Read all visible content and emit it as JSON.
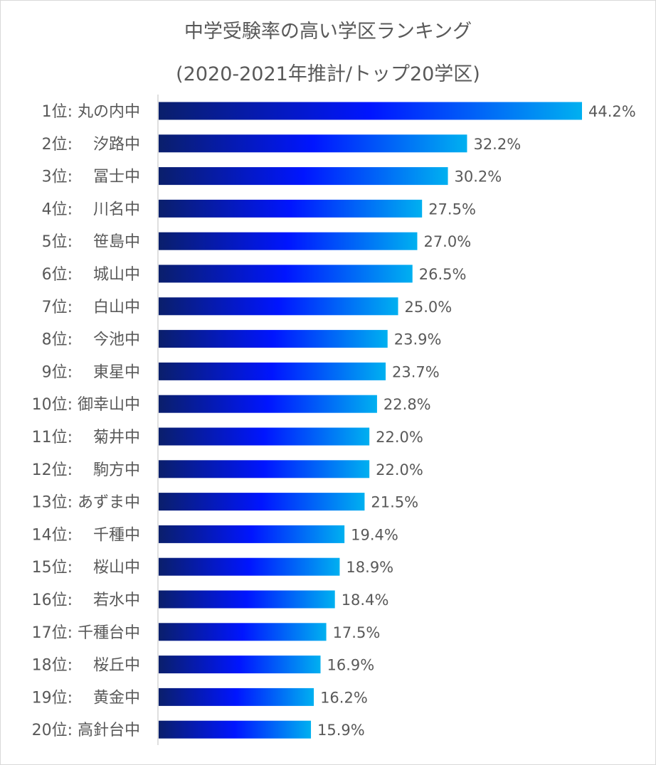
{
  "chart_data": {
    "type": "bar",
    "orientation": "horizontal",
    "title": "中学受験率の高い学区ランキング",
    "subtitle": "(2020-2021年推計/トップ20学区)",
    "categories": [
      "1位: 丸の内中",
      "2位:　 汐路中",
      "3位:　 冨士中",
      "4位:　 川名中",
      "5位:　 笹島中",
      "6位:　 城山中",
      "7位:　 白山中",
      "8位:　 今池中",
      "9位:　 東星中",
      "10位: 御幸山中",
      "11位:　 菊井中",
      "12位:　 駒方中",
      "13位: あずま中",
      "14位:　 千種中",
      "15位:　 桜山中",
      "16位:　 若水中",
      "17位: 千種台中",
      "18位:　 桜丘中",
      "19位:　 黄金中",
      "20位: 高針台中"
    ],
    "values": [
      44.2,
      32.2,
      30.2,
      27.5,
      27.0,
      26.5,
      25.0,
      23.9,
      23.7,
      22.8,
      22.0,
      22.0,
      21.5,
      19.4,
      18.9,
      18.4,
      17.5,
      16.9,
      16.2,
      15.9
    ],
    "data_labels": [
      "44.2%",
      "32.2%",
      "30.2%",
      "27.5%",
      "27.0%",
      "26.5%",
      "25.0%",
      "23.9%",
      "23.7%",
      "22.8%",
      "22.0%",
      "22.0%",
      "21.5%",
      "19.4%",
      "18.9%",
      "18.4%",
      "17.5%",
      "16.9%",
      "16.2%",
      "15.9%"
    ],
    "xlabel": "",
    "ylabel": "",
    "xlim": [
      0,
      44.2
    ],
    "grid": false,
    "legend": "none",
    "colors": {
      "gradient_start": "#0a1f6b",
      "gradient_mid": "#0015ff",
      "gradient_end": "#00b0f0",
      "axis": "#bfbfbf",
      "text": "#595959"
    }
  }
}
